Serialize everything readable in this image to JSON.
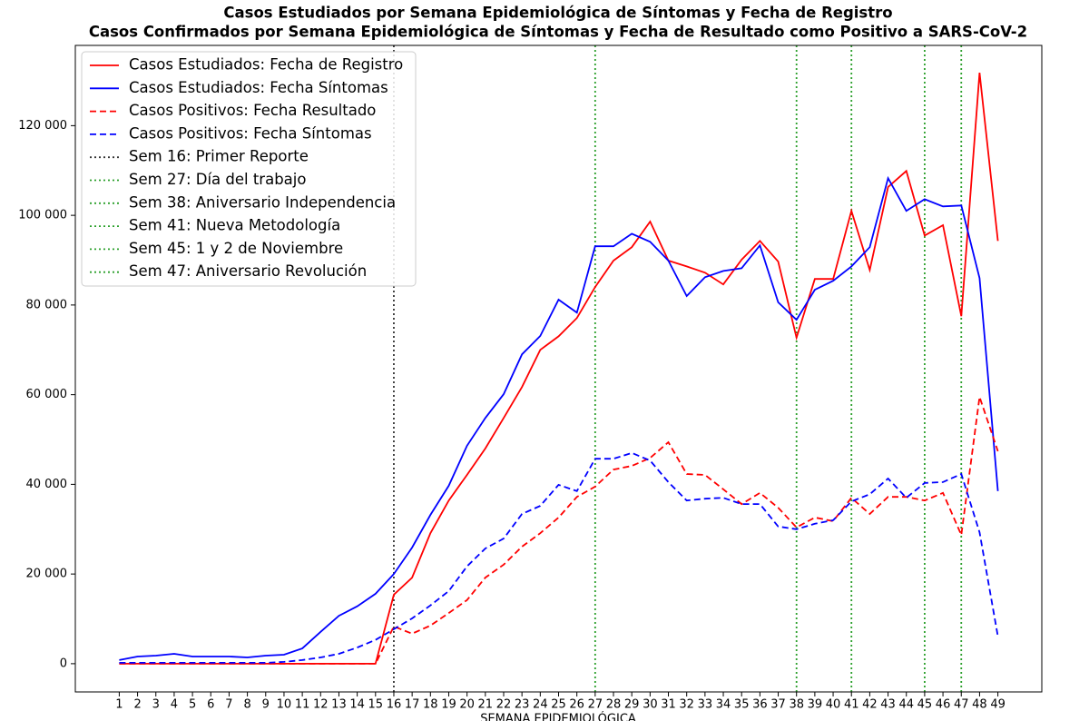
{
  "chart_data": {
    "type": "line",
    "title": "Casos Estudiados por Semana Epidemiológica de Síntomas y Fecha de Registro",
    "subtitle": "Casos Confirmados por Semana Epidemiológica de Síntomas y Fecha de Resultado como Positivo a SARS-CoV-2",
    "xlabel": "SEMANA EPIDEMIOLÓGICA",
    "x": [
      1,
      2,
      3,
      4,
      5,
      6,
      7,
      8,
      9,
      10,
      11,
      12,
      13,
      14,
      15,
      16,
      17,
      18,
      19,
      20,
      21,
      22,
      23,
      24,
      25,
      26,
      27,
      28,
      29,
      30,
      31,
      32,
      33,
      34,
      35,
      36,
      37,
      38,
      39,
      40,
      41,
      42,
      43,
      44,
      45,
      46,
      47,
      48,
      49
    ],
    "xlim": [
      -1.4,
      51.4
    ],
    "xticks": [
      1,
      2,
      3,
      4,
      5,
      6,
      7,
      8,
      9,
      10,
      11,
      12,
      13,
      14,
      15,
      16,
      17,
      18,
      19,
      20,
      21,
      22,
      23,
      24,
      25,
      26,
      27,
      28,
      29,
      30,
      31,
      32,
      33,
      34,
      35,
      36,
      37,
      38,
      39,
      40,
      41,
      42,
      43,
      44,
      45,
      46,
      47,
      48,
      49
    ],
    "ylim": [
      -6300,
      137900
    ],
    "yticks": [
      0,
      {
        "value": 20000,
        "label": "20 000"
      },
      {
        "value": 40000,
        "label": "40 000"
      },
      {
        "value": 60000,
        "label": "60 000"
      },
      {
        "value": 80000,
        "label": "80 000"
      },
      {
        "value": 100000,
        "label": "100 000"
      },
      {
        "value": 120000,
        "label": "120 000"
      }
    ],
    "grid": false,
    "legend": "upper-left",
    "series": [
      {
        "name": "Casos Estudiados: Fecha de Registro",
        "color": "#ff0000",
        "style": "solid",
        "values": [
          0,
          0,
          0,
          0,
          0,
          0,
          0,
          0,
          0,
          0,
          0,
          0,
          0,
          0,
          0,
          15400,
          19200,
          29100,
          36400,
          42100,
          48000,
          54800,
          61700,
          70000,
          73000,
          77100,
          84000,
          89900,
          92900,
          98600,
          89900,
          88600,
          87200,
          84600,
          90100,
          94300,
          89700,
          72700,
          85800,
          85800,
          101000,
          87800,
          106300,
          109900,
          95500,
          97800,
          77500,
          131800,
          94300
        ]
      },
      {
        "name": "Casos Estudiados: Fecha Síntomas",
        "color": "#0000ff",
        "style": "solid",
        "values": [
          800,
          1600,
          1800,
          2200,
          1600,
          1600,
          1600,
          1400,
          1800,
          2000,
          3400,
          7100,
          10700,
          12800,
          15600,
          20000,
          25900,
          33200,
          39700,
          48600,
          54800,
          60100,
          69000,
          73100,
          81200,
          78300,
          93100,
          93100,
          95900,
          94100,
          89900,
          82000,
          86200,
          87600,
          88200,
          93300,
          80600,
          76700,
          83400,
          85400,
          88600,
          92900,
          108300,
          101000,
          103600,
          102000,
          102200,
          86000,
          38500
        ]
      },
      {
        "name": "Casos Positivos: Fecha Resultado",
        "color": "#ff0000",
        "style": "dashed",
        "values": [
          0,
          0,
          0,
          0,
          0,
          0,
          0,
          0,
          0,
          0,
          0,
          0,
          0,
          0,
          0,
          8300,
          6700,
          8500,
          11300,
          14200,
          19200,
          22100,
          26100,
          29100,
          32600,
          37200,
          39500,
          43300,
          44100,
          45900,
          49400,
          42300,
          42100,
          38900,
          35600,
          38100,
          34800,
          30400,
          32600,
          31800,
          37000,
          33400,
          37200,
          37200,
          36400,
          38100,
          28700,
          59500,
          47400
        ]
      },
      {
        "name": "Casos Positivos: Fecha Síntomas",
        "color": "#0000ff",
        "style": "dashed",
        "values": [
          200,
          200,
          200,
          200,
          200,
          200,
          200,
          200,
          200,
          400,
          800,
          1400,
          2200,
          3600,
          5300,
          7700,
          10100,
          13000,
          16200,
          21700,
          25700,
          27900,
          33400,
          35200,
          39900,
          38500,
          45700,
          45700,
          47000,
          45300,
          40500,
          36400,
          36800,
          37000,
          35600,
          35600,
          30600,
          30000,
          31200,
          32000,
          36200,
          37800,
          41300,
          37000,
          40300,
          40500,
          42300,
          29300,
          6100
        ]
      }
    ],
    "vlines": [
      {
        "x": 16,
        "name": "Sem 16: Primer Reporte",
        "color": "#333333"
      },
      {
        "x": 27,
        "name": "Sem 27: Día del trabajo",
        "color": "#2ca02c"
      },
      {
        "x": 38,
        "name": "Sem 38: Aniversario Independencia",
        "color": "#2ca02c"
      },
      {
        "x": 41,
        "name": "Sem 41: Nueva Metodología",
        "color": "#2ca02c"
      },
      {
        "x": 45,
        "name": "Sem 45: 1 y 2 de Noviembre",
        "color": "#2ca02c"
      },
      {
        "x": 47,
        "name": "Sem 47: Aniversario Revolución",
        "color": "#2ca02c"
      }
    ]
  }
}
